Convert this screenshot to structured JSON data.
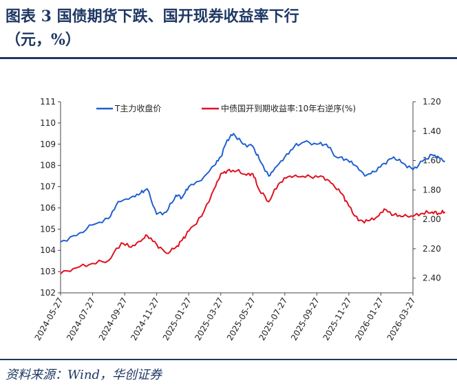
{
  "header": {
    "title_line1": "图表 3   国债期货下跌、国开现券收益率下行",
    "title_line2": "（元，%）"
  },
  "footer": {
    "source": "资料来源：Wind，华创证券"
  },
  "colors": {
    "blue": "#1f5fd0",
    "red": "#e0101f",
    "navy": "#1f3864"
  },
  "chart_data": {
    "type": "line",
    "title": "国债期货下跌、国开现券收益率下行",
    "x_ticks": [
      "2024-05-27",
      "2024-07-27",
      "2024-09-27",
      "2024-11-27",
      "2025-01-27",
      "2025-03-27",
      "2025-05-27",
      "2025-07-27",
      "2025-09-27",
      "2025-11-27",
      "2026-01-27",
      "2026-03-27"
    ],
    "y_left": {
      "min": 102,
      "max": 111,
      "ticks": [
        "102",
        "103",
        "104",
        "105",
        "106",
        "107",
        "108",
        "109",
        "110",
        "111"
      ]
    },
    "y_right": {
      "min": 1.2,
      "max": 2.5,
      "inverted": true,
      "ticks": [
        "1.20",
        "1.40",
        "1.60",
        "1.80",
        "2.00",
        "2.20",
        "2.40"
      ]
    },
    "series": [
      {
        "name": "T主力收盘价",
        "axis": "left",
        "color": "#1f5fd0",
        "points": [
          [
            0,
            104.4
          ],
          [
            0.5,
            104.7
          ],
          [
            1,
            105.2
          ],
          [
            1.5,
            105.5
          ],
          [
            1.8,
            106.3
          ],
          [
            2.2,
            106.5
          ],
          [
            2.5,
            106.7
          ],
          [
            2.7,
            106.9
          ],
          [
            3.0,
            105.7
          ],
          [
            3.3,
            105.8
          ],
          [
            3.6,
            106.6
          ],
          [
            3.8,
            106.5
          ],
          [
            4.0,
            107.0
          ],
          [
            4.4,
            107.3
          ],
          [
            4.8,
            108.0
          ],
          [
            5.0,
            108.4
          ],
          [
            5.2,
            109.2
          ],
          [
            5.4,
            109.5
          ],
          [
            5.7,
            109.0
          ],
          [
            6.0,
            108.9
          ],
          [
            6.2,
            108.3
          ],
          [
            6.5,
            107.5
          ],
          [
            6.7,
            107.9
          ],
          [
            7.0,
            108.4
          ],
          [
            7.3,
            108.9
          ],
          [
            7.6,
            109.1
          ],
          [
            8.0,
            109.0
          ],
          [
            8.3,
            109.0
          ],
          [
            8.6,
            108.4
          ],
          [
            8.9,
            108.3
          ],
          [
            9.2,
            108.0
          ],
          [
            9.5,
            107.5
          ],
          [
            9.8,
            107.7
          ],
          [
            10.1,
            108.1
          ],
          [
            10.4,
            108.4
          ],
          [
            10.7,
            108.1
          ],
          [
            11.0,
            107.8
          ],
          [
            11.3,
            108.2
          ],
          [
            11.6,
            108.5
          ],
          [
            11.8,
            108.4
          ],
          [
            12,
            108.2
          ]
        ]
      },
      {
        "name": "中债国开到期收益率:10年右逆序(%)",
        "axis": "right",
        "color": "#e0101f",
        "points": [
          [
            0,
            2.37
          ],
          [
            0.5,
            2.33
          ],
          [
            1,
            2.3
          ],
          [
            1.5,
            2.28
          ],
          [
            1.9,
            2.16
          ],
          [
            2.2,
            2.19
          ],
          [
            2.5,
            2.15
          ],
          [
            2.7,
            2.11
          ],
          [
            3.0,
            2.17
          ],
          [
            3.3,
            2.23
          ],
          [
            3.6,
            2.19
          ],
          [
            3.8,
            2.14
          ],
          [
            4.0,
            2.08
          ],
          [
            4.4,
            1.98
          ],
          [
            4.8,
            1.79
          ],
          [
            5.0,
            1.69
          ],
          [
            5.2,
            1.67
          ],
          [
            5.5,
            1.67
          ],
          [
            5.8,
            1.7
          ],
          [
            6.0,
            1.69
          ],
          [
            6.2,
            1.8
          ],
          [
            6.5,
            1.88
          ],
          [
            6.8,
            1.76
          ],
          [
            7.1,
            1.71
          ],
          [
            7.4,
            1.71
          ],
          [
            7.8,
            1.71
          ],
          [
            8.2,
            1.71
          ],
          [
            8.5,
            1.76
          ],
          [
            8.8,
            1.83
          ],
          [
            9.0,
            1.91
          ],
          [
            9.3,
            2.01
          ],
          [
            9.6,
            2.01
          ],
          [
            9.9,
            1.98
          ],
          [
            10.1,
            1.93
          ],
          [
            10.4,
            1.97
          ],
          [
            10.7,
            1.98
          ],
          [
            11.0,
            1.98
          ],
          [
            11.3,
            1.96
          ],
          [
            11.6,
            1.95
          ],
          [
            11.8,
            1.96
          ],
          [
            12,
            1.95
          ]
        ]
      }
    ],
    "legend": [
      "T主力收盘价",
      "中债国开到期收益率:10年右逆序(%)"
    ],
    "legend_position": "top"
  }
}
